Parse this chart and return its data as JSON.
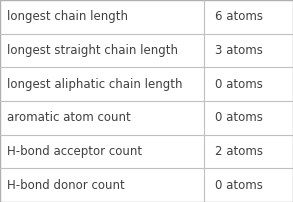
{
  "rows": [
    {
      "label": "longest chain length",
      "value": "6 atoms"
    },
    {
      "label": "longest straight chain length",
      "value": "3 atoms"
    },
    {
      "label": "longest aliphatic chain length",
      "value": "0 atoms"
    },
    {
      "label": "aromatic atom count",
      "value": "0 atoms"
    },
    {
      "label": "H-bond acceptor count",
      "value": "2 atoms"
    },
    {
      "label": "H-bond donor count",
      "value": "0 atoms"
    }
  ],
  "col_split": 0.695,
  "background_color": "#ffffff",
  "border_color": "#c0c0c0",
  "text_color": "#404040",
  "font_size": 8.5,
  "outer_border_color": "#b0b0b0",
  "figsize": [
    2.93,
    2.02
  ],
  "dpi": 100
}
